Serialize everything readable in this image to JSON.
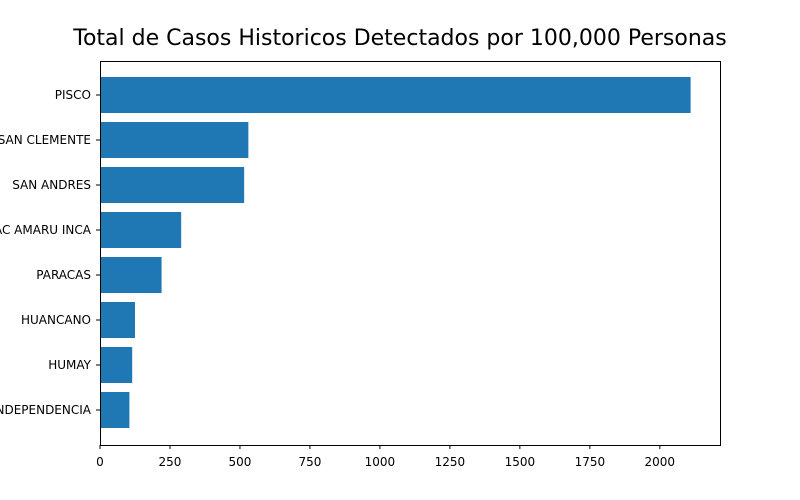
{
  "chart_data": {
    "type": "bar",
    "orientation": "horizontal",
    "title": "Total de Casos Historicos Detectados por 100,000 Personas",
    "xlabel": "",
    "ylabel": "",
    "categories": [
      "PISCO",
      "SAN CLEMENTE",
      "SAN ANDRES",
      "TUPAC AMARU INCA",
      "PARACAS",
      "HUANCANO",
      "HUMAY",
      "INDEPENDENCIA"
    ],
    "values": [
      2110,
      530,
      515,
      290,
      220,
      125,
      115,
      105
    ],
    "xlim": [
      0,
      2215
    ],
    "xticks": [
      "0",
      "250",
      "500",
      "750",
      "1000",
      "1250",
      "1500",
      "1750",
      "2000"
    ],
    "xtick_values": [
      0,
      250,
      500,
      750,
      1000,
      1250,
      1500,
      1750,
      2000
    ],
    "grid": false,
    "legend": "none",
    "bar_color": "#1f77b4"
  }
}
